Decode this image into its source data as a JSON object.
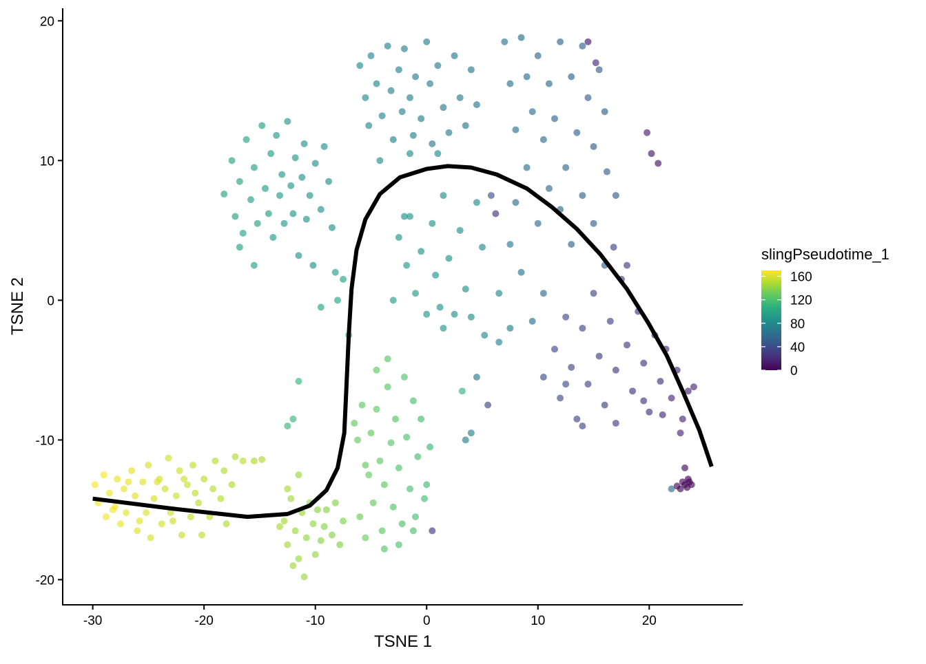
{
  "chart_data": {
    "type": "scatter",
    "xlabel": "TSNE 1",
    "ylabel": "TSNE 2",
    "xlim": [
      -32.7,
      28.4
    ],
    "ylim": [
      -21.8,
      20.9
    ],
    "xticks": [
      -30,
      -20,
      -10,
      0,
      10,
      20
    ],
    "yticks": [
      -20,
      -10,
      0,
      10,
      20
    ],
    "grid": false,
    "legend": {
      "title": "slingPseudotime_1",
      "position": "right",
      "colormap": "viridis",
      "range": [
        0,
        170
      ],
      "ticks": [
        0,
        40,
        80,
        120,
        160
      ]
    },
    "point_color_variable": "slingPseudotime_1",
    "point_alpha": 0.65,
    "points": [
      [
        -29.8,
        -13.2,
        168
      ],
      [
        -29.5,
        -14.5,
        168
      ],
      [
        -29,
        -12.5,
        167
      ],
      [
        -28.8,
        -15.5,
        166
      ],
      [
        -28.5,
        -13.8,
        166
      ],
      [
        -28,
        -14.8,
        165
      ],
      [
        -27.8,
        -12.8,
        165
      ],
      [
        -27.5,
        -16,
        164
      ],
      [
        -27.2,
        -13.5,
        164
      ],
      [
        -27,
        -15.2,
        163
      ],
      [
        -26.5,
        -12.2,
        163
      ],
      [
        -26.2,
        -14,
        162
      ],
      [
        -26,
        -16.5,
        162
      ],
      [
        -25.5,
        -13,
        161
      ],
      [
        -25.2,
        -15.2,
        161
      ],
      [
        -25,
        -11.8,
        160
      ],
      [
        -24.8,
        -17,
        160
      ],
      [
        -24.5,
        -14.2,
        159
      ],
      [
        -24,
        -12.8,
        159
      ],
      [
        -23.8,
        -16,
        158
      ],
      [
        -23.5,
        -13.5,
        158
      ],
      [
        -23.2,
        -11.3,
        157
      ],
      [
        -23,
        -15.2,
        157
      ],
      [
        -22.5,
        -14,
        156
      ],
      [
        -22.2,
        -12.2,
        156
      ],
      [
        -22,
        -16.8,
        155
      ],
      [
        -21.5,
        -13.2,
        155
      ],
      [
        -21.2,
        -15.5,
        154
      ],
      [
        -21,
        -11.8,
        154
      ],
      [
        -20.5,
        -14.5,
        153
      ],
      [
        -20.2,
        -16.8,
        153
      ],
      [
        -20,
        -12.8,
        152
      ],
      [
        -19.5,
        -15.5,
        152
      ],
      [
        -19.2,
        -13.5,
        151
      ],
      [
        -19,
        -11.5,
        151
      ],
      [
        -18.5,
        -14.2,
        150
      ],
      [
        -18.2,
        -12.2,
        150
      ],
      [
        -18,
        -16,
        149
      ],
      [
        -17.5,
        -13.2,
        149
      ],
      [
        -17.2,
        -11.2,
        150
      ],
      [
        -16.5,
        -11.5,
        150
      ],
      [
        -15.5,
        -11.5,
        149
      ],
      [
        -14.8,
        -11.4,
        149
      ],
      [
        -28.2,
        -15,
        167
      ],
      [
        -26.8,
        -13,
        165
      ],
      [
        -25.8,
        -15.8,
        163
      ],
      [
        -24.2,
        -13,
        160
      ],
      [
        -22.8,
        -15.8,
        157
      ],
      [
        -21.8,
        -12.8,
        156
      ],
      [
        -20.8,
        -13.8,
        154
      ],
      [
        -12.8,
        -15.8,
        146
      ],
      [
        -12.5,
        -17.5,
        146
      ],
      [
        -12.2,
        -14.2,
        145
      ],
      [
        -12,
        -19,
        145
      ],
      [
        -11.8,
        -16.5,
        144
      ],
      [
        -11.5,
        -18.5,
        144
      ],
      [
        -11.2,
        -15.2,
        143
      ],
      [
        -11,
        -19.8,
        143
      ],
      [
        -10.8,
        -17,
        142
      ],
      [
        -10.5,
        -14.5,
        142
      ],
      [
        -10.2,
        -16,
        141
      ],
      [
        -10,
        -18.2,
        141
      ],
      [
        -9.8,
        -15,
        140
      ],
      [
        -9.5,
        -17.2,
        140
      ],
      [
        -9.2,
        -16.2,
        139
      ],
      [
        -9,
        -15,
        139
      ],
      [
        -8.5,
        -16.8,
        138
      ],
      [
        -8.2,
        -14.5,
        138
      ],
      [
        -7.8,
        -17.5,
        137
      ],
      [
        -7.5,
        -15.8,
        137
      ],
      [
        -12.5,
        -13.5,
        146
      ],
      [
        -13.2,
        -16.2,
        147
      ],
      [
        -11.5,
        -12.5,
        144
      ],
      [
        -6,
        -15.5,
        132
      ],
      [
        -5.5,
        -17,
        131
      ],
      [
        -5.2,
        -12.5,
        130
      ],
      [
        -5,
        -9.5,
        129
      ],
      [
        -4.8,
        -14.5,
        129
      ],
      [
        -4.5,
        -7.8,
        128
      ],
      [
        -4.2,
        -11.5,
        127
      ],
      [
        -4,
        -16.5,
        127
      ],
      [
        -3.8,
        -13.2,
        126
      ],
      [
        -3.5,
        -6.2,
        125
      ],
      [
        -3.2,
        -10.2,
        125
      ],
      [
        -3,
        -14.8,
        124
      ],
      [
        -2.8,
        -8.5,
        123
      ],
      [
        -2.5,
        -12,
        123
      ],
      [
        -2.2,
        -16,
        122
      ],
      [
        -2,
        -5.5,
        121
      ],
      [
        -1.8,
        -9.8,
        121
      ],
      [
        -1.5,
        -13.5,
        120
      ],
      [
        -1.2,
        -7.2,
        119
      ],
      [
        -1,
        -15.5,
        119
      ],
      [
        -0.8,
        -11.2,
        118
      ],
      [
        -0.5,
        -8.5,
        117
      ],
      [
        -0.2,
        -14.2,
        117
      ],
      [
        0,
        -13.2,
        116
      ],
      [
        0.3,
        -10.5,
        115
      ],
      [
        -4.5,
        -5,
        126
      ],
      [
        -3.5,
        -4.2,
        125
      ],
      [
        -5.8,
        -7.5,
        127
      ],
      [
        -6.2,
        -10,
        128
      ],
      [
        -3.8,
        -17.8,
        124
      ],
      [
        -2.5,
        -17.5,
        122
      ],
      [
        -1.2,
        -16.5,
        120
      ],
      [
        0.5,
        -16.5,
        30
      ],
      [
        -6.5,
        -8.8,
        129
      ],
      [
        -5.5,
        -11.8,
        129
      ],
      [
        -18.2,
        7.6,
        100
      ],
      [
        -17.5,
        10,
        99
      ],
      [
        -17.2,
        6,
        98
      ],
      [
        -16.8,
        8.5,
        98
      ],
      [
        -16.5,
        4.8,
        97
      ],
      [
        -16.2,
        11.5,
        97
      ],
      [
        -15.8,
        7.2,
        96
      ],
      [
        -15.5,
        9.5,
        96
      ],
      [
        -15.2,
        5.5,
        95
      ],
      [
        -14.8,
        12.5,
        95
      ],
      [
        -14.5,
        8,
        94
      ],
      [
        -14.2,
        6.2,
        94
      ],
      [
        -14,
        10.5,
        93
      ],
      [
        -13.8,
        4.5,
        93
      ],
      [
        -13.5,
        11.8,
        92
      ],
      [
        -13.2,
        7.5,
        92
      ],
      [
        -13,
        9,
        91
      ],
      [
        -12.8,
        5.5,
        91
      ],
      [
        -12.5,
        12.8,
        90
      ],
      [
        -12.2,
        8.2,
        90
      ],
      [
        -12,
        6.2,
        89
      ],
      [
        -11.8,
        10.2,
        89
      ],
      [
        -11.5,
        3.2,
        88
      ],
      [
        -11.2,
        8.8,
        88
      ],
      [
        -11,
        11.2,
        87
      ],
      [
        -10.8,
        5.8,
        87
      ],
      [
        -10.5,
        7.5,
        86
      ],
      [
        -10.2,
        2.5,
        86
      ],
      [
        -10,
        9.8,
        85
      ],
      [
        -9.5,
        6.5,
        85
      ],
      [
        -9.2,
        11,
        84
      ],
      [
        -8.8,
        8.5,
        84
      ],
      [
        -8.5,
        5.2,
        84
      ],
      [
        -8.2,
        2,
        96
      ],
      [
        -8,
        0,
        98
      ],
      [
        -7.5,
        1.5,
        97
      ],
      [
        -9.5,
        -0.5,
        99
      ],
      [
        -16.8,
        3.8,
        98
      ],
      [
        -15.5,
        2.5,
        97
      ],
      [
        -11.5,
        -5.8,
        110
      ],
      [
        -12,
        -8.5,
        112
      ],
      [
        -12.5,
        -9,
        113
      ],
      [
        -7,
        -2.5,
        110
      ],
      [
        -6,
        16.8,
        80
      ],
      [
        -5.5,
        14.5,
        79
      ],
      [
        -5.2,
        12.5,
        79
      ],
      [
        -5,
        17.5,
        78
      ],
      [
        -4.5,
        15.5,
        78
      ],
      [
        -4.2,
        10,
        84
      ],
      [
        -4,
        13.2,
        77
      ],
      [
        -3.5,
        18.2,
        77
      ],
      [
        -3.2,
        15,
        76
      ],
      [
        -3,
        11.5,
        76
      ],
      [
        -2.5,
        16.5,
        75
      ],
      [
        -2.2,
        13.5,
        75
      ],
      [
        -2,
        18,
        74
      ],
      [
        -1.5,
        14.5,
        74
      ],
      [
        -1.2,
        11.8,
        73
      ],
      [
        -1,
        16,
        73
      ],
      [
        -0.5,
        13,
        72
      ],
      [
        0,
        18.5,
        72
      ],
      [
        0.3,
        15.5,
        71
      ],
      [
        0.5,
        11.2,
        71
      ],
      [
        1,
        16.8,
        70
      ],
      [
        1.5,
        13.8,
        70
      ],
      [
        2,
        12,
        72
      ],
      [
        2.5,
        17.5,
        69
      ],
      [
        3,
        14.5,
        69
      ],
      [
        3.5,
        12.5,
        68
      ],
      [
        4,
        16.5,
        68
      ],
      [
        4.5,
        14,
        67
      ],
      [
        -1.5,
        10.5,
        82
      ],
      [
        1,
        10.5,
        80
      ],
      [
        -2.5,
        4.5,
        88
      ],
      [
        -1.8,
        2.5,
        90
      ],
      [
        -1.5,
        6,
        87
      ],
      [
        -1,
        0.5,
        91
      ],
      [
        -0.5,
        3.5,
        89
      ],
      [
        0,
        -1,
        90
      ],
      [
        0.5,
        5.5,
        87
      ],
      [
        0.8,
        1.8,
        88
      ],
      [
        1.2,
        -0.5,
        86
      ],
      [
        1.5,
        7.5,
        84
      ],
      [
        2,
        3,
        86
      ],
      [
        2.5,
        -1,
        84
      ],
      [
        3,
        5,
        84
      ],
      [
        3.5,
        0.8,
        83
      ],
      [
        4,
        -1.2,
        82
      ],
      [
        4.5,
        7,
        82
      ],
      [
        5,
        3.8,
        80
      ],
      [
        5.2,
        -2.5,
        79
      ],
      [
        5.5,
        -7.5,
        35
      ],
      [
        5.8,
        7.5,
        40
      ],
      [
        4.5,
        -5.5,
        70
      ],
      [
        3.5,
        -10,
        72
      ],
      [
        4,
        -9.5,
        73
      ],
      [
        6.2,
        6.2,
        22
      ],
      [
        3.2,
        -6.5,
        110
      ],
      [
        6.5,
        0.5,
        80
      ],
      [
        6.5,
        -3,
        78
      ],
      [
        1.5,
        -2,
        88
      ],
      [
        -3,
        0,
        94
      ],
      [
        -2,
        6,
        85
      ],
      [
        7,
        18.5,
        65
      ],
      [
        7.5,
        15.5,
        64
      ],
      [
        8,
        12.2,
        63
      ],
      [
        8.5,
        18.8,
        62
      ],
      [
        9,
        16,
        62
      ],
      [
        9.5,
        13.5,
        61
      ],
      [
        10,
        17.5,
        60
      ],
      [
        10.5,
        11.5,
        60
      ],
      [
        11,
        15.5,
        59
      ],
      [
        11.5,
        13,
        58
      ],
      [
        12,
        18.5,
        57
      ],
      [
        12.5,
        9.5,
        58
      ],
      [
        13,
        16,
        56
      ],
      [
        13.5,
        12,
        55
      ],
      [
        14,
        18.2,
        54
      ],
      [
        14.5,
        14.5,
        53
      ],
      [
        15,
        11,
        52
      ],
      [
        15.5,
        16.5,
        51
      ],
      [
        16,
        13.5,
        50
      ],
      [
        16.2,
        9.2,
        50
      ],
      [
        8,
        7,
        62
      ],
      [
        9,
        9.5,
        61
      ],
      [
        10,
        5.5,
        60
      ],
      [
        11,
        8,
        59
      ],
      [
        12,
        6.5,
        58
      ],
      [
        13,
        4,
        56
      ],
      [
        14,
        7.5,
        54
      ],
      [
        15,
        5.5,
        52
      ],
      [
        16,
        2.5,
        50
      ],
      [
        17,
        7.5,
        48
      ],
      [
        7.5,
        4,
        70
      ],
      [
        8.5,
        2,
        68
      ],
      [
        9.5,
        -1.5,
        62
      ],
      [
        10.5,
        0.5,
        60
      ],
      [
        7.5,
        -2,
        72
      ],
      [
        14.5,
        18.5,
        10
      ],
      [
        15.2,
        17,
        20
      ],
      [
        19.8,
        12,
        15
      ],
      [
        20.2,
        10.5,
        10
      ],
      [
        20.8,
        9.8,
        8
      ],
      [
        10.5,
        -5.5,
        40
      ],
      [
        11.5,
        -3.5,
        39
      ],
      [
        12,
        -7,
        38
      ],
      [
        12.5,
        -1.2,
        37
      ],
      [
        13,
        -4.8,
        37
      ],
      [
        13.5,
        -8.5,
        36
      ],
      [
        14,
        -2,
        35
      ],
      [
        14.5,
        -6,
        35
      ],
      [
        15,
        0.5,
        34
      ],
      [
        15.5,
        -4,
        33
      ],
      [
        16,
        -7.5,
        32
      ],
      [
        16.5,
        -1.5,
        31
      ],
      [
        17,
        -5,
        30
      ],
      [
        17.5,
        1.5,
        30
      ],
      [
        18,
        -3.2,
        29
      ],
      [
        18.5,
        -6.5,
        28
      ],
      [
        19,
        -0.8,
        27
      ],
      [
        19.5,
        -4.5,
        26
      ],
      [
        20,
        -8,
        25
      ],
      [
        20.5,
        -2.5,
        24
      ],
      [
        21,
        -5.8,
        23
      ],
      [
        21.5,
        -3.5,
        22
      ],
      [
        22,
        -7,
        21
      ],
      [
        22.5,
        -5,
        20
      ],
      [
        23,
        -8.5,
        19
      ],
      [
        23.5,
        -6.5,
        18
      ],
      [
        24,
        -6.2,
        18
      ],
      [
        22.8,
        -9.5,
        17
      ],
      [
        21.2,
        -8.2,
        20
      ],
      [
        18,
        2.5,
        32
      ],
      [
        17,
        -8.8,
        32
      ],
      [
        12.5,
        -6,
        39
      ],
      [
        16.8,
        3.8,
        36
      ],
      [
        19.5,
        -7.2,
        25
      ],
      [
        14,
        -9,
        35
      ],
      [
        22,
        -13.5,
        60
      ],
      [
        22.5,
        -13.3,
        4
      ],
      [
        22.8,
        -13.5,
        3
      ],
      [
        23,
        -13,
        3
      ],
      [
        23.2,
        -13.2,
        2
      ],
      [
        23.4,
        -13.4,
        2
      ],
      [
        23.6,
        -13,
        1
      ],
      [
        23.8,
        -13.2,
        1
      ],
      [
        23.2,
        -12,
        5
      ],
      [
        23.5,
        -12.8,
        0
      ]
    ],
    "curve": [
      [
        -30,
        -14.2
      ],
      [
        -23,
        -14.9
      ],
      [
        -16.1,
        -15.5
      ],
      [
        -12.5,
        -15.3
      ],
      [
        -10.5,
        -14.7
      ],
      [
        -9,
        -13.6
      ],
      [
        -8,
        -12
      ],
      [
        -7.4,
        -9.5
      ],
      [
        -7.2,
        -6.1
      ],
      [
        -7,
        -2.5
      ],
      [
        -6.75,
        0.8
      ],
      [
        -6.3,
        3.6
      ],
      [
        -5.5,
        5.8
      ],
      [
        -4.2,
        7.6
      ],
      [
        -2.4,
        8.8
      ],
      [
        0,
        9.4
      ],
      [
        1.9,
        9.6
      ],
      [
        4,
        9.5
      ],
      [
        6.3,
        9.0
      ],
      [
        9,
        8
      ],
      [
        11.2,
        6.7
      ],
      [
        13.5,
        5.1
      ],
      [
        15.6,
        3.3
      ],
      [
        18,
        0.8
      ],
      [
        19.9,
        -1.6
      ],
      [
        21.6,
        -4
      ],
      [
        23,
        -6.5
      ],
      [
        24.5,
        -9.3
      ],
      [
        25.6,
        -11.9
      ]
    ]
  }
}
